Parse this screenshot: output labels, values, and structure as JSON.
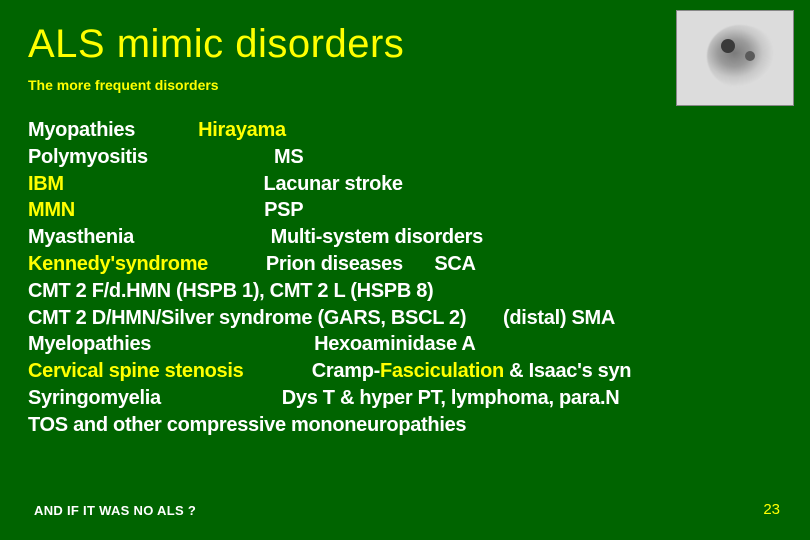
{
  "slide": {
    "title": "ALS mimic disorders",
    "subtitle": "The more frequent disorders",
    "footer_left": "AND IF IT WAS NO ALS ?",
    "page_number": "23",
    "background_color": "#006400",
    "accent_color": "#ffff00",
    "text_color": "#ffffff",
    "title_fontsize_pt": 40,
    "subtitle_fontsize_pt": 14,
    "body_fontsize_pt": 20,
    "corner_image_desc": "grayscale-neuron-cell-micrograph"
  },
  "lines": [
    {
      "segments": [
        {
          "t": "Myopathies",
          "y": false
        },
        {
          "t": "            ",
          "y": false
        },
        {
          "t": "Hirayama",
          "y": true
        }
      ]
    },
    {
      "segments": [
        {
          "t": "Polymyositis",
          "y": false
        },
        {
          "t": "                        ",
          "y": false
        },
        {
          "t": "MS",
          "y": false
        }
      ]
    },
    {
      "segments": [
        {
          "t": "IBM",
          "y": true
        },
        {
          "t": "                                      ",
          "y": false
        },
        {
          "t": "Lacunar stroke",
          "y": false
        }
      ]
    },
    {
      "segments": [
        {
          "t": "MMN",
          "y": true
        },
        {
          "t": "                                    ",
          "y": false
        },
        {
          "t": "PSP",
          "y": false
        }
      ]
    },
    {
      "segments": [
        {
          "t": "Myasthenia",
          "y": false
        },
        {
          "t": "                          ",
          "y": false
        },
        {
          "t": "Multi-system disorders",
          "y": false
        }
      ]
    },
    {
      "segments": [
        {
          "t": "Kennedy'syndrome",
          "y": true
        },
        {
          "t": "           ",
          "y": false
        },
        {
          "t": "Prion diseases",
          "y": false
        },
        {
          "t": "      ",
          "y": false
        },
        {
          "t": "SCA",
          "y": false
        }
      ]
    },
    {
      "segments": [
        {
          "t": "CMT 2 F/d.HMN (HSPB 1), CMT 2 L (HSPB 8)",
          "y": false
        }
      ]
    },
    {
      "segments": [
        {
          "t": "CMT 2 D/HMN/Silver syndrome (GARS, BSCL 2)",
          "y": false
        },
        {
          "t": "       ",
          "y": false
        },
        {
          "t": "(distal) SMA",
          "y": false
        }
      ]
    },
    {
      "segments": [
        {
          "t": "Myelopathies",
          "y": false
        },
        {
          "t": "                               ",
          "y": false
        },
        {
          "t": "Hexoaminidase A",
          "y": false
        }
      ]
    },
    {
      "segments": [
        {
          "t": "Cervical spine stenosis",
          "y": true
        },
        {
          "t": "             ",
          "y": false
        },
        {
          "t": "Cramp-",
          "y": false
        },
        {
          "t": "Fasciculation",
          "y": true
        },
        {
          "t": " & Isaac's syn",
          "y": false
        }
      ]
    },
    {
      "segments": [
        {
          "t": "Syringomyelia",
          "y": false
        },
        {
          "t": "                       ",
          "y": false
        },
        {
          "t": "Dys T & hyper PT, lymphoma, para.N",
          "y": false
        }
      ]
    },
    {
      "segments": [
        {
          "t": "TOS and other compressive mononeuropathies",
          "y": false
        }
      ]
    }
  ]
}
